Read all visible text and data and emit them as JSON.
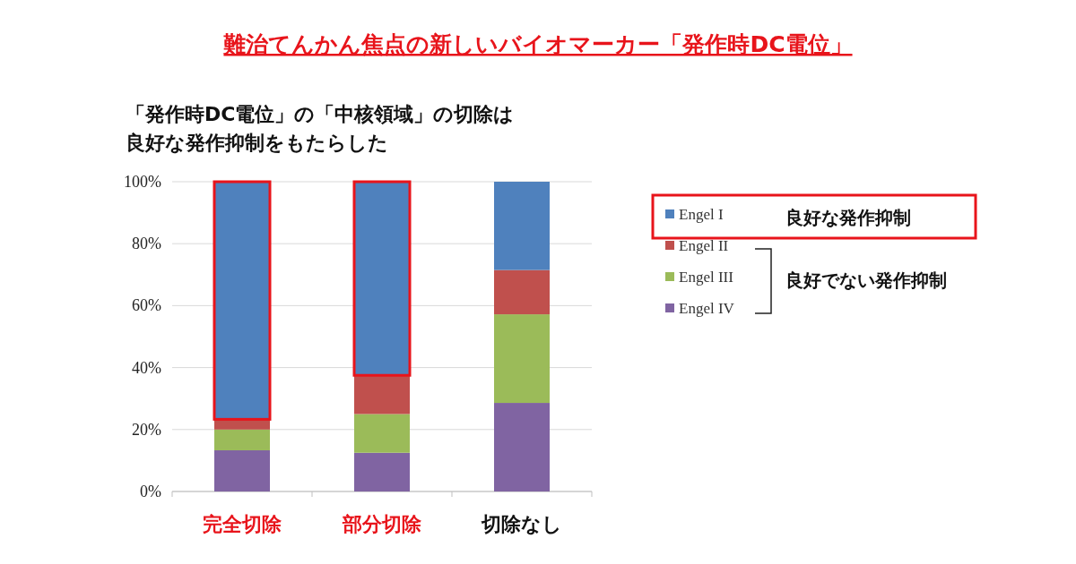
{
  "chart_data": {
    "type": "bar",
    "stacked": true,
    "title": "難治てんかん焦点の新しいバイオマーカー「発作時DC電位」",
    "subtitle": "「発作時DC電位」の「中核領域」の切除は良好な発作抑制をもたらした",
    "categories": [
      "完全切除",
      "部分切除",
      "切除なし"
    ],
    "series": [
      {
        "name": "Engel IV",
        "color": "#8064a2",
        "values": [
          13.3,
          12.5,
          28.6
        ]
      },
      {
        "name": "Engel III",
        "color": "#9bbb59",
        "values": [
          6.7,
          12.5,
          28.6
        ]
      },
      {
        "name": "Engel II",
        "color": "#c0504d",
        "values": [
          3.3,
          12.5,
          14.3
        ]
      },
      {
        "name": "Engel I",
        "color": "#4f81bd",
        "values": [
          76.7,
          62.5,
          28.5
        ]
      }
    ],
    "ylim": [
      0,
      100
    ],
    "yticks": [
      {
        "value": 0,
        "label": "0%"
      },
      {
        "value": 20,
        "label": "20%"
      },
      {
        "value": 40,
        "label": "40%"
      },
      {
        "value": 60,
        "label": "60%"
      },
      {
        "value": 80,
        "label": "80%"
      },
      {
        "value": 100,
        "label": "100%"
      }
    ],
    "grid": "y",
    "legend": "right",
    "annotations": [
      "良好な発作抑制",
      "良好でない発作抑制"
    ]
  }
}
